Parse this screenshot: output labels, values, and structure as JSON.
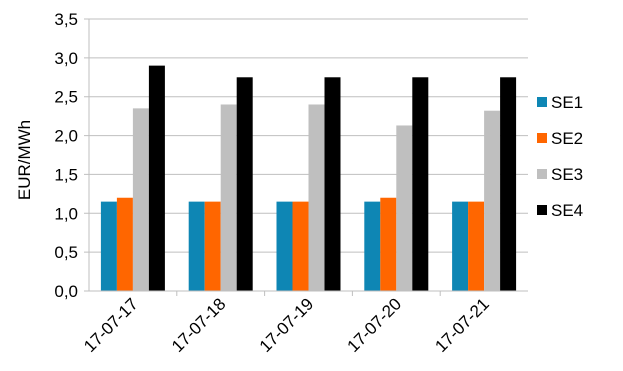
{
  "chart_data": {
    "type": "bar",
    "title": "",
    "xlabel": "",
    "ylabel": "EUR/MWh",
    "ylim": [
      0,
      3.5
    ],
    "yticks": [
      "0,0",
      "0,5",
      "1,0",
      "1,5",
      "2,0",
      "2,5",
      "3,0",
      "3,5"
    ],
    "categories": [
      "17-07-17",
      "17-07-18",
      "17-07-19",
      "17-07-20",
      "17-07-21"
    ],
    "series": [
      {
        "name": "SE1",
        "color": "#0e86b4",
        "values": [
          1.15,
          1.15,
          1.15,
          1.15,
          1.15
        ]
      },
      {
        "name": "SE2",
        "color": "#ff6600",
        "values": [
          1.2,
          1.15,
          1.15,
          1.2,
          1.15
        ]
      },
      {
        "name": "SE3",
        "color": "#bfbfbf",
        "values": [
          2.35,
          2.4,
          2.4,
          2.13,
          2.32
        ]
      },
      {
        "name": "SE4",
        "color": "#000000",
        "values": [
          2.9,
          2.75,
          2.75,
          2.75,
          2.75
        ]
      }
    ],
    "grid": true,
    "legend_position": "right"
  }
}
